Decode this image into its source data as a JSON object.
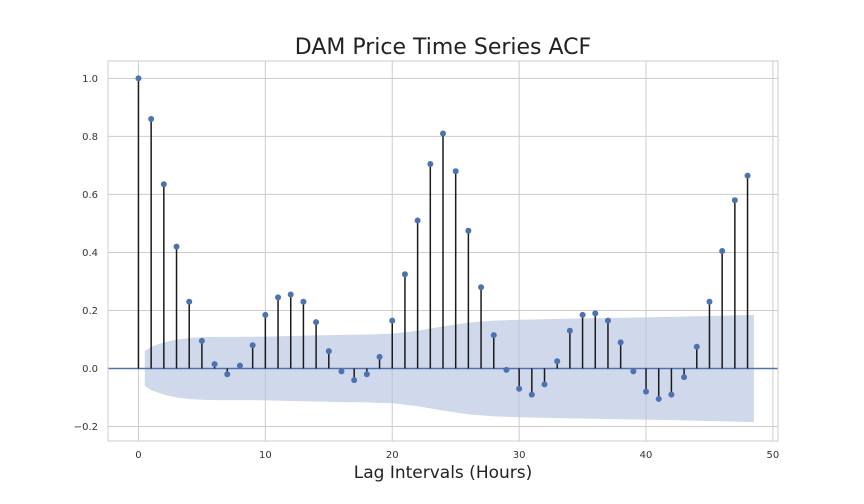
{
  "chart_data": {
    "type": "stem",
    "title": "DAM Price Time Series ACF",
    "xlabel": "Lag Intervals (Hours)",
    "ylabel": "",
    "xlim": [
      -2.4,
      50.4
    ],
    "ylim": [
      -0.25,
      1.06
    ],
    "xticks": [
      0,
      10,
      20,
      30,
      40,
      50
    ],
    "yticks": [
      -0.2,
      0.0,
      0.2,
      0.4,
      0.6,
      0.8,
      1.0
    ],
    "ytick_labels": [
      "−0.2",
      "0.0",
      "0.2",
      "0.4",
      "0.6",
      "0.8",
      "1.0"
    ],
    "grid": true,
    "lags": [
      0,
      1,
      2,
      3,
      4,
      5,
      6,
      7,
      8,
      9,
      10,
      11,
      12,
      13,
      14,
      15,
      16,
      17,
      18,
      19,
      20,
      21,
      22,
      23,
      24,
      25,
      26,
      27,
      28,
      29,
      30,
      31,
      32,
      33,
      34,
      35,
      36,
      37,
      38,
      39,
      40,
      41,
      42,
      43,
      44,
      45,
      46,
      47,
      48
    ],
    "acf": [
      1.0,
      0.86,
      0.635,
      0.42,
      0.23,
      0.095,
      0.015,
      -0.02,
      0.01,
      0.08,
      0.185,
      0.245,
      0.255,
      0.23,
      0.16,
      0.06,
      -0.01,
      -0.04,
      -0.02,
      0.04,
      0.165,
      0.325,
      0.51,
      0.705,
      0.81,
      0.68,
      0.475,
      0.28,
      0.115,
      -0.005,
      -0.07,
      -0.09,
      -0.055,
      0.025,
      0.13,
      0.185,
      0.19,
      0.165,
      0.09,
      -0.01,
      -0.08,
      -0.105,
      -0.09,
      -0.03,
      0.075,
      0.23,
      0.405,
      0.58,
      0.665
    ],
    "confidence_band": {
      "lags": [
        0.5,
        1,
        2,
        3,
        4,
        5,
        6,
        7,
        8,
        10,
        12,
        14,
        16,
        18,
        20,
        22,
        24,
        26,
        28,
        30,
        34,
        38,
        42,
        46,
        48.5
      ],
      "upper": [
        0.06,
        0.075,
        0.09,
        0.1,
        0.105,
        0.108,
        0.109,
        0.109,
        0.109,
        0.11,
        0.112,
        0.114,
        0.116,
        0.117,
        0.12,
        0.13,
        0.145,
        0.158,
        0.165,
        0.168,
        0.172,
        0.175,
        0.178,
        0.182,
        0.185
      ]
    },
    "colors": {
      "marker": "#4c72b0",
      "stem": "#1a1a1a",
      "band": "#b0c0dd",
      "grid": "#cccccc"
    }
  }
}
